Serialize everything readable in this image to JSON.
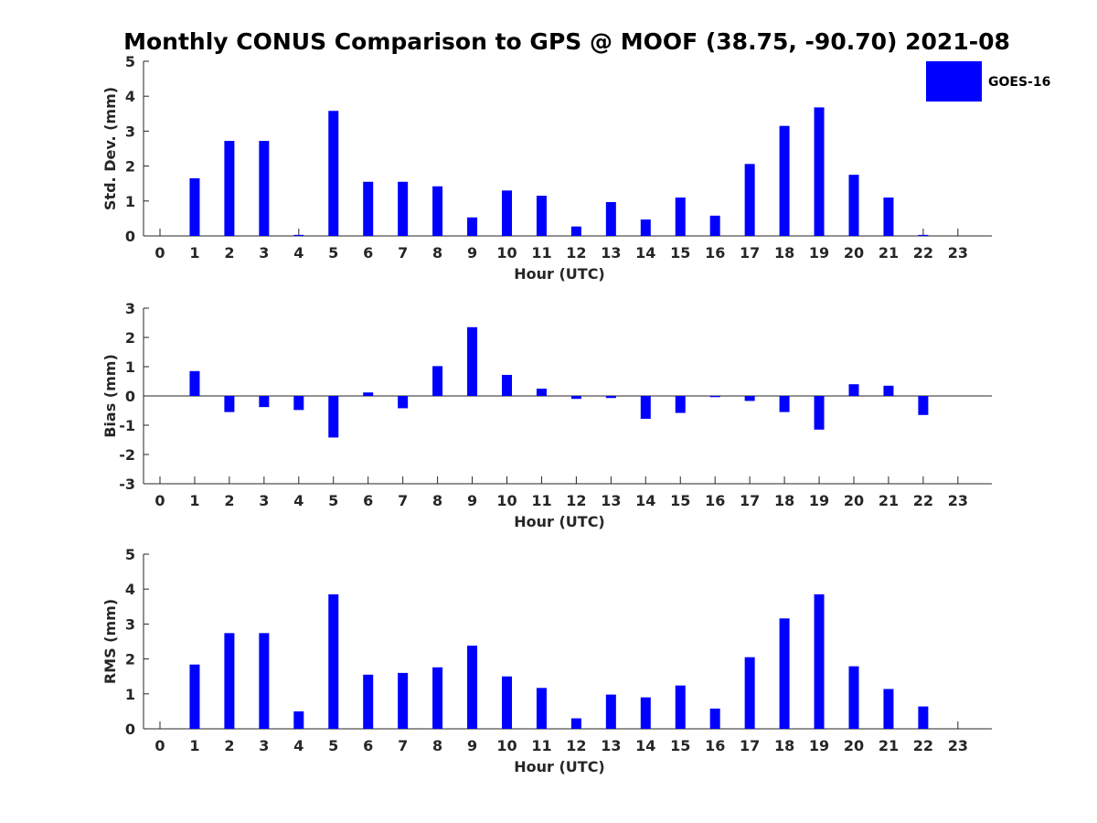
{
  "figure_title": "Monthly CONUS Comparison to GPS @ MOOF (38.75, -90.70) 2021-08",
  "legend": {
    "label": "GOES-16",
    "color": "#0000ff"
  },
  "chart_data": [
    {
      "type": "bar",
      "ylabel": "Std. Dev. (mm)",
      "xlabel": "Hour (UTC)",
      "ylim": [
        0,
        5
      ],
      "yticks": [
        0,
        1,
        2,
        3,
        4,
        5
      ],
      "categories": [
        0,
        1,
        2,
        3,
        4,
        5,
        6,
        7,
        8,
        9,
        10,
        11,
        12,
        13,
        14,
        15,
        16,
        17,
        18,
        19,
        20,
        21,
        22,
        23
      ],
      "series": [
        {
          "name": "GOES-16",
          "color": "#0000ff",
          "values": [
            null,
            1.65,
            2.72,
            2.72,
            0.03,
            3.58,
            1.55,
            1.55,
            1.42,
            0.53,
            1.3,
            1.15,
            0.27,
            0.97,
            0.47,
            1.1,
            0.58,
            2.06,
            3.15,
            3.68,
            1.75,
            1.1,
            0.03,
            null
          ]
        }
      ]
    },
    {
      "type": "bar",
      "ylabel": "Bias (mm)",
      "xlabel": "Hour (UTC)",
      "ylim": [
        -3,
        3
      ],
      "yticks": [
        -3,
        -2,
        -1,
        0,
        1,
        2,
        3
      ],
      "categories": [
        0,
        1,
        2,
        3,
        4,
        5,
        6,
        7,
        8,
        9,
        10,
        11,
        12,
        13,
        14,
        15,
        16,
        17,
        18,
        19,
        20,
        21,
        22,
        23
      ],
      "series": [
        {
          "name": "GOES-16",
          "color": "#0000ff",
          "values": [
            null,
            0.85,
            -0.55,
            -0.38,
            -0.48,
            -1.42,
            0.12,
            -0.42,
            1.02,
            2.35,
            0.72,
            0.25,
            -0.1,
            -0.07,
            -0.78,
            -0.58,
            -0.04,
            -0.17,
            -0.55,
            -1.15,
            0.4,
            0.35,
            -0.65,
            null
          ]
        }
      ]
    },
    {
      "type": "bar",
      "ylabel": "RMS (mm)",
      "xlabel": "Hour (UTC)",
      "ylim": [
        0,
        5
      ],
      "yticks": [
        0,
        1,
        2,
        3,
        4,
        5
      ],
      "categories": [
        0,
        1,
        2,
        3,
        4,
        5,
        6,
        7,
        8,
        9,
        10,
        11,
        12,
        13,
        14,
        15,
        16,
        17,
        18,
        19,
        20,
        21,
        22,
        23
      ],
      "series": [
        {
          "name": "GOES-16",
          "color": "#0000ff",
          "values": [
            null,
            1.84,
            2.74,
            2.74,
            0.5,
            3.85,
            1.55,
            1.6,
            1.76,
            2.38,
            1.5,
            1.17,
            0.3,
            0.98,
            0.9,
            1.24,
            0.58,
            2.05,
            3.16,
            3.85,
            1.79,
            1.14,
            0.64,
            null
          ]
        }
      ]
    }
  ]
}
